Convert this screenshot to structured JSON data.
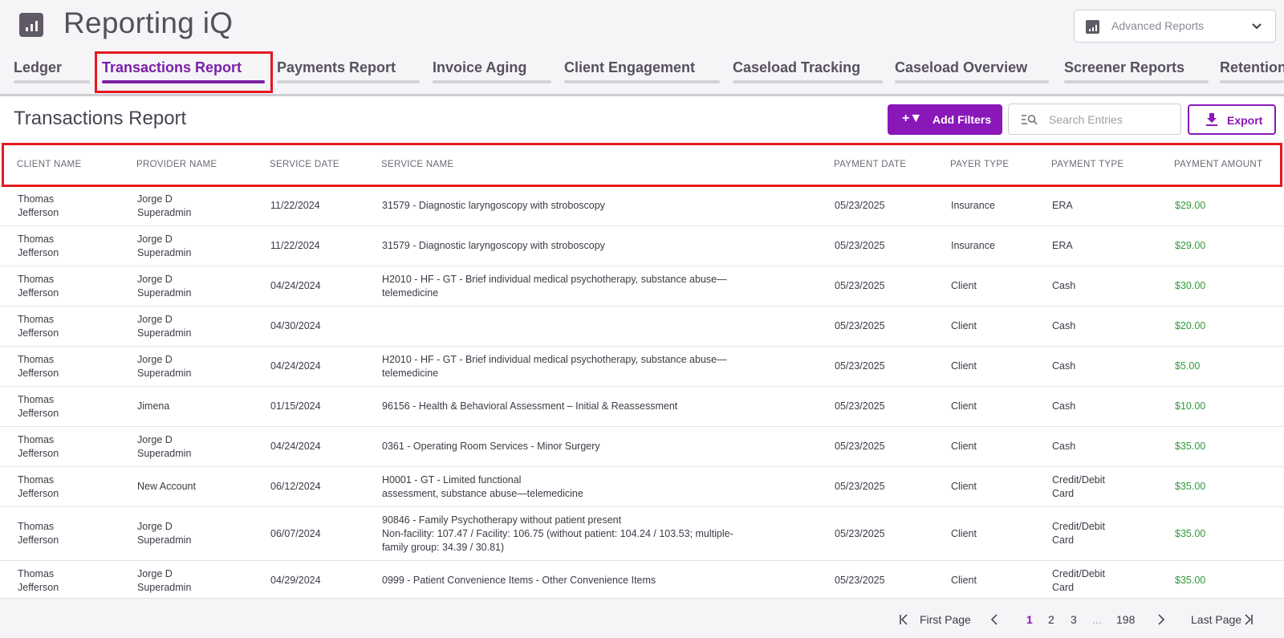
{
  "app": {
    "title": "Reporting iQ"
  },
  "report_select": {
    "label": "Advanced Reports"
  },
  "tabs": [
    {
      "label": "Ledger",
      "active": false
    },
    {
      "label": "Transactions Report",
      "active": true
    },
    {
      "label": "Payments Report",
      "active": false
    },
    {
      "label": "Invoice Aging",
      "active": false
    },
    {
      "label": "Client Engagement",
      "active": false
    },
    {
      "label": "Caseload Tracking",
      "active": false
    },
    {
      "label": "Caseload Overview",
      "active": false
    },
    {
      "label": "Screener Reports",
      "active": false
    },
    {
      "label": "Retention",
      "active": false
    }
  ],
  "section": {
    "title": "Transactions Report"
  },
  "toolbar": {
    "filters_icon": "+▼",
    "filters_label": "Add Filters",
    "search_placeholder": "Search Entries",
    "search_value": "",
    "export_label": "Export"
  },
  "table": {
    "columns": [
      "CLIENT NAME",
      "PROVIDER NAME",
      "SERVICE DATE",
      "SERVICE NAME",
      "PAYMENT DATE",
      "PAYER TYPE",
      "PAYMENT TYPE",
      "PAYMENT AMOUNT"
    ],
    "rows": [
      {
        "client": [
          "Thomas",
          "Jefferson"
        ],
        "provider": [
          "Jorge D",
          "Superadmin"
        ],
        "service_date": "11/22/2024",
        "service_name": [
          "31579 - Diagnostic laryngoscopy with stroboscopy"
        ],
        "payment_date": "05/23/2025",
        "payer_type": "Insurance",
        "payment_type": [
          "ERA"
        ],
        "amount": "$29.00"
      },
      {
        "client": [
          "Thomas",
          "Jefferson"
        ],
        "provider": [
          "Jorge D",
          "Superadmin"
        ],
        "service_date": "11/22/2024",
        "service_name": [
          "31579 - Diagnostic laryngoscopy with stroboscopy"
        ],
        "payment_date": "05/23/2025",
        "payer_type": "Insurance",
        "payment_type": [
          "ERA"
        ],
        "amount": "$29.00"
      },
      {
        "client": [
          "Thomas",
          "Jefferson"
        ],
        "provider": [
          "Jorge D",
          "Superadmin"
        ],
        "service_date": "04/24/2024",
        "service_name": [
          "H2010 - HF - GT - Brief individual medical psychotherapy, substance abuse—",
          "telemedicine"
        ],
        "payment_date": "05/23/2025",
        "payer_type": "Client",
        "payment_type": [
          "Cash"
        ],
        "amount": "$30.00"
      },
      {
        "client": [
          "Thomas",
          "Jefferson"
        ],
        "provider": [
          "Jorge D",
          "Superadmin"
        ],
        "service_date": "04/30/2024",
        "service_name": [],
        "payment_date": "05/23/2025",
        "payer_type": "Client",
        "payment_type": [
          "Cash"
        ],
        "amount": "$20.00"
      },
      {
        "client": [
          "Thomas",
          "Jefferson"
        ],
        "provider": [
          "Jorge D",
          "Superadmin"
        ],
        "service_date": "04/24/2024",
        "service_name": [
          "H2010 - HF - GT - Brief individual medical psychotherapy, substance abuse—",
          "telemedicine"
        ],
        "payment_date": "05/23/2025",
        "payer_type": "Client",
        "payment_type": [
          "Cash"
        ],
        "amount": "$5.00"
      },
      {
        "client": [
          "Thomas",
          "Jefferson"
        ],
        "provider": [
          "Jimena"
        ],
        "service_date": "01/15/2024",
        "service_name": [
          "96156 - Health & Behavioral Assessment – Initial & Reassessment"
        ],
        "payment_date": "05/23/2025",
        "payer_type": "Client",
        "payment_type": [
          "Cash"
        ],
        "amount": "$10.00"
      },
      {
        "client": [
          "Thomas",
          "Jefferson"
        ],
        "provider": [
          "Jorge D",
          "Superadmin"
        ],
        "service_date": "04/24/2024",
        "service_name": [
          "0361 - Operating Room Services - Minor Surgery"
        ],
        "payment_date": "05/23/2025",
        "payer_type": "Client",
        "payment_type": [
          "Cash"
        ],
        "amount": "$35.00"
      },
      {
        "client": [
          "Thomas",
          "Jefferson"
        ],
        "provider": [
          "New Account"
        ],
        "service_date": "06/12/2024",
        "service_name": [
          "H0001 - GT - Limited functional",
          "assessment, substance abuse—telemedicine"
        ],
        "payment_date": "05/23/2025",
        "payer_type": "Client",
        "payment_type": [
          "Credit/Debit",
          "Card"
        ],
        "amount": "$35.00"
      },
      {
        "client": [
          "Thomas",
          "Jefferson"
        ],
        "provider": [
          "Jorge D",
          "Superadmin"
        ],
        "service_date": "06/07/2024",
        "service_name": [
          "90846 - Family Psychotherapy without patient present",
          "Non-facility: 107.47 / Facility: 106.75 (without patient: 104.24 / 103.53; multiple-",
          "family group: 34.39 / 30.81)"
        ],
        "payment_date": "05/23/2025",
        "payer_type": "Client",
        "payment_type": [
          "Credit/Debit",
          "Card"
        ],
        "amount": "$35.00"
      },
      {
        "client": [
          "Thomas",
          "Jefferson"
        ],
        "provider": [
          "Jorge D",
          "Superadmin"
        ],
        "service_date": "04/29/2024",
        "service_name": [
          "0999 - Patient Convenience Items - Other Convenience Items"
        ],
        "payment_date": "05/23/2025",
        "payer_type": "Client",
        "payment_type": [
          "Credit/Debit",
          "Card"
        ],
        "amount": "$35.00"
      }
    ]
  },
  "pagination": {
    "first_label": "First Page",
    "pages": [
      "1",
      "2",
      "3"
    ],
    "current": "1",
    "ellipsis": "...",
    "last_number": "198",
    "last_label": "Last Page"
  },
  "colors": {
    "accent": "#8a17b8",
    "amount": "#2f9a3a",
    "highlight": "#e5191f"
  }
}
